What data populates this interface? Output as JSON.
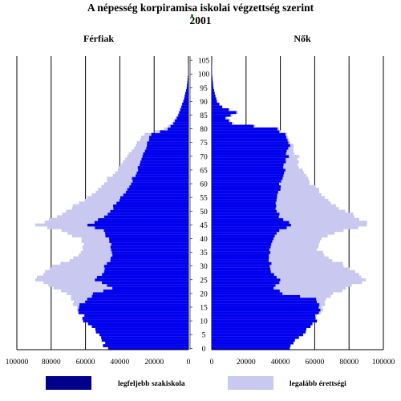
{
  "chart_data": {
    "type": "bar",
    "orientation": "horizontal-pyramid",
    "title": "A népesség korpiramisa iskolai végzettség szerint",
    "subtitle": "2001",
    "left_label": "Férfiak",
    "right_label": "Nők",
    "xlim": [
      0,
      100000
    ],
    "left_ticks": [
      "100000",
      "80000",
      "60000",
      "40000",
      "20000",
      "0"
    ],
    "right_ticks": [
      "0",
      "20000",
      "40000",
      "60000",
      "80000",
      "100000"
    ],
    "age_ticks": [
      "0",
      "5",
      "10",
      "15",
      "20",
      "25",
      "30",
      "35",
      "40",
      "45",
      "50",
      "55",
      "60",
      "65",
      "70",
      "75",
      "80",
      "85",
      "90",
      "95",
      "100",
      "105"
    ],
    "grid": true,
    "legend_position": "bottom",
    "colors": {
      "low": "#0000ee",
      "high": "#c8c8f0",
      "legend_low": "#00008b",
      "legend_high": "#c8c8f0"
    },
    "series": [
      {
        "name": "legfeljebb szakiskola",
        "key": "low"
      },
      {
        "name": "legalább érettségi",
        "key": "high"
      }
    ],
    "men_age_nodes": [
      0,
      5,
      10,
      15,
      20,
      22,
      25,
      28,
      32,
      36,
      40,
      43,
      45,
      48,
      50,
      55,
      60,
      65,
      70,
      75,
      78,
      80,
      82,
      85,
      90,
      95,
      100,
      105
    ],
    "men_low": [
      48000,
      52000,
      60000,
      64000,
      55000,
      44000,
      55000,
      50000,
      46000,
      44000,
      46000,
      50000,
      58000,
      50000,
      46000,
      39000,
      34000,
      30000,
      27000,
      24000,
      22000,
      12000,
      9000,
      6000,
      3000,
      1000,
      200,
      0
    ],
    "men_total": [
      48000,
      52000,
      60000,
      65000,
      70000,
      78000,
      90000,
      85000,
      70000,
      60000,
      62000,
      75000,
      88000,
      78000,
      72000,
      58000,
      50000,
      42000,
      36000,
      30000,
      26000,
      14000,
      10000,
      6500,
      3000,
      1000,
      200,
      0
    ],
    "women_age_nodes": [
      0,
      5,
      10,
      15,
      18,
      20,
      22,
      25,
      28,
      32,
      36,
      40,
      43,
      45,
      48,
      50,
      55,
      60,
      65,
      70,
      75,
      78,
      80,
      82,
      84,
      86,
      88,
      90,
      95,
      100,
      105
    ],
    "women_low": [
      45000,
      52000,
      60000,
      63000,
      62000,
      42000,
      36000,
      40000,
      35000,
      34000,
      34000,
      36000,
      40000,
      47000,
      40000,
      38000,
      38000,
      40000,
      42000,
      44000,
      45000,
      42000,
      38000,
      12000,
      8000,
      14000,
      6000,
      3000,
      1000,
      200,
      0
    ],
    "women_total": [
      45000,
      52000,
      60000,
      65000,
      68000,
      72000,
      78000,
      90000,
      85000,
      72000,
      62000,
      64000,
      78000,
      92000,
      85000,
      78000,
      66000,
      58000,
      52000,
      50000,
      46000,
      43000,
      39000,
      13000,
      9000,
      15000,
      6000,
      3000,
      1000,
      200,
      0
    ]
  }
}
